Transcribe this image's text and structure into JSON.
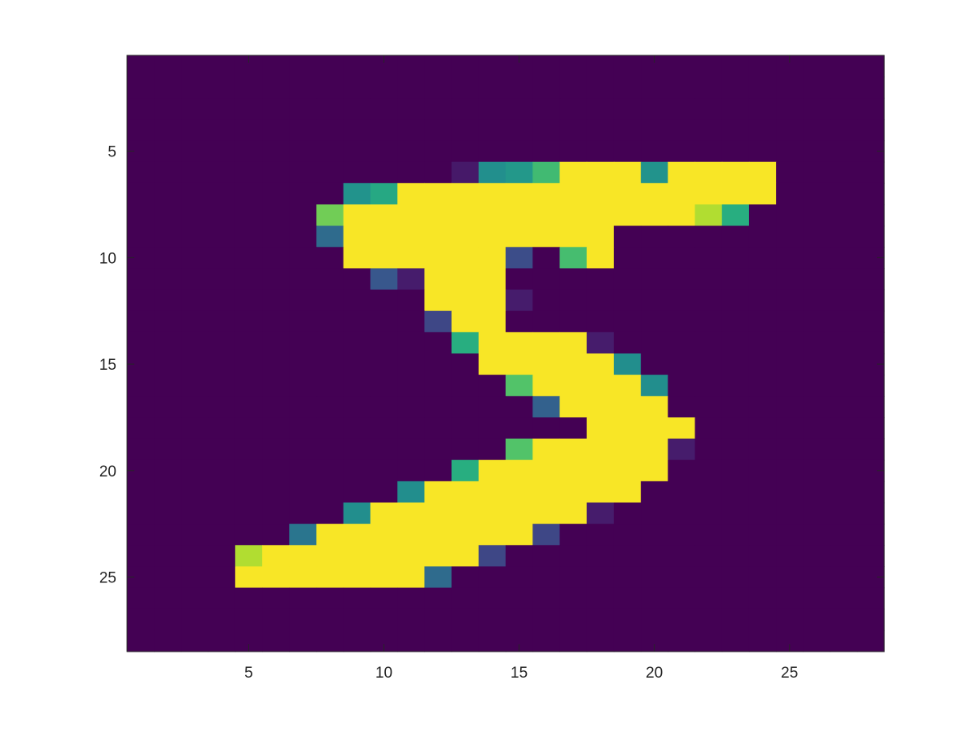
{
  "chart_data": {
    "type": "heatmap",
    "title": "",
    "xlabel": "",
    "ylabel": "",
    "xlim": [
      0.5,
      28.5
    ],
    "ylim": [
      0.5,
      28.5
    ],
    "y_direction": "reversed",
    "colormap": "viridis",
    "clim": [
      0,
      255
    ],
    "grid": false,
    "xticks": [
      "5",
      "10",
      "15",
      "20",
      "25"
    ],
    "yticks": [
      "5",
      "10",
      "15",
      "20",
      "25"
    ],
    "rows": 28,
    "cols": 28,
    "cells": [
      {
        "row": 6,
        "cols": [
          13,
          14,
          15,
          16,
          17,
          18,
          19,
          20,
          21,
          22,
          23,
          24
        ],
        "values": [
          18,
          126,
          136,
          175,
          253,
          253,
          253,
          131,
          253,
          253,
          253,
          253
        ]
      },
      {
        "row": 7,
        "cols": [
          9,
          10,
          11,
          12,
          13,
          14,
          15,
          16,
          17,
          18,
          19,
          20,
          21,
          22,
          23,
          24
        ],
        "values": [
          131,
          154,
          253,
          253,
          253,
          253,
          253,
          253,
          253,
          253,
          253,
          253,
          253,
          253,
          253,
          253
        ]
      },
      {
        "row": 8,
        "cols": [
          8,
          9,
          10,
          11,
          12,
          13,
          14,
          15,
          16,
          17,
          18,
          19,
          20,
          21,
          22,
          23
        ],
        "values": [
          200,
          253,
          253,
          253,
          253,
          253,
          253,
          253,
          253,
          253,
          253,
          253,
          253,
          253,
          226,
          160
        ]
      },
      {
        "row": 9,
        "cols": [
          8,
          9,
          10,
          11,
          12,
          13,
          14,
          15,
          16,
          17,
          18
        ],
        "values": [
          90,
          253,
          253,
          253,
          253,
          253,
          253,
          253,
          253,
          253,
          253
        ]
      },
      {
        "row": 10,
        "cols": [
          9,
          10,
          11,
          12,
          13,
          14,
          15,
          17,
          18
        ],
        "values": [
          253,
          253,
          253,
          253,
          253,
          253,
          60,
          178,
          253
        ]
      },
      {
        "row": 11,
        "cols": [
          10,
          11,
          12,
          13,
          14
        ],
        "values": [
          70,
          20,
          253,
          253,
          253
        ]
      },
      {
        "row": 12,
        "cols": [
          12,
          13,
          14,
          15
        ],
        "values": [
          253,
          253,
          253,
          20
        ]
      },
      {
        "row": 13,
        "cols": [
          12,
          13,
          14
        ],
        "values": [
          55,
          253,
          253
        ]
      },
      {
        "row": 14,
        "cols": [
          13,
          14,
          15,
          16,
          17,
          18
        ],
        "values": [
          160,
          253,
          253,
          253,
          253,
          20
        ]
      },
      {
        "row": 15,
        "cols": [
          14,
          15,
          16,
          17,
          18,
          19
        ],
        "values": [
          253,
          253,
          253,
          253,
          253,
          125
        ]
      },
      {
        "row": 16,
        "cols": [
          15,
          16,
          17,
          18,
          19,
          20
        ],
        "values": [
          185,
          253,
          253,
          253,
          253,
          125
        ]
      },
      {
        "row": 17,
        "cols": [
          16,
          17,
          18,
          19,
          20
        ],
        "values": [
          80,
          253,
          253,
          253,
          253
        ]
      },
      {
        "row": 18,
        "cols": [
          18,
          19,
          20,
          21
        ],
        "values": [
          253,
          253,
          253,
          253
        ]
      },
      {
        "row": 19,
        "cols": [
          15,
          16,
          17,
          18,
          19,
          20,
          21
        ],
        "values": [
          185,
          253,
          253,
          253,
          253,
          253,
          20
        ]
      },
      {
        "row": 20,
        "cols": [
          13,
          14,
          15,
          16,
          17,
          18,
          19,
          20
        ],
        "values": [
          160,
          253,
          253,
          253,
          253,
          253,
          253,
          253
        ]
      },
      {
        "row": 21,
        "cols": [
          11,
          12,
          13,
          14,
          15,
          16,
          17,
          18,
          19
        ],
        "values": [
          125,
          253,
          253,
          253,
          253,
          253,
          253,
          253,
          253
        ]
      },
      {
        "row": 22,
        "cols": [
          9,
          10,
          11,
          12,
          13,
          14,
          15,
          16,
          17,
          18
        ],
        "values": [
          125,
          253,
          253,
          253,
          253,
          253,
          253,
          253,
          253,
          20
        ]
      },
      {
        "row": 23,
        "cols": [
          7,
          8,
          9,
          10,
          11,
          12,
          13,
          14,
          15,
          16
        ],
        "values": [
          100,
          253,
          253,
          253,
          253,
          253,
          253,
          253,
          253,
          55
        ]
      },
      {
        "row": 24,
        "cols": [
          5,
          6,
          7,
          8,
          9,
          10,
          11,
          12,
          13,
          14
        ],
        "values": [
          226,
          253,
          253,
          253,
          253,
          253,
          253,
          253,
          253,
          55
        ]
      },
      {
        "row": 25,
        "cols": [
          5,
          6,
          7,
          8,
          9,
          10,
          11,
          12
        ],
        "values": [
          253,
          253,
          253,
          253,
          253,
          253,
          253,
          90
        ]
      }
    ]
  }
}
